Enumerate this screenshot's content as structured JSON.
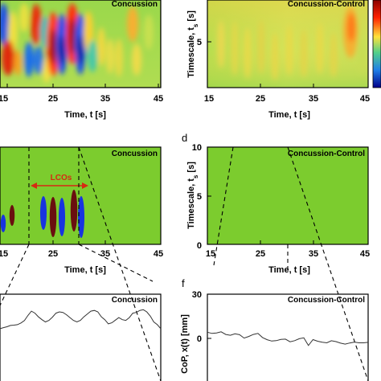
{
  "chart_data": [
    {
      "type": "heatmap",
      "title": "Concussion",
      "xlabel": "Time, t [s]",
      "xticks": [
        "15",
        "25",
        "35",
        "45"
      ],
      "xlim": [
        15,
        45
      ],
      "note": "wavelet spectrum, strong alternating red/blue bands between t=15 and 32 s"
    },
    {
      "type": "heatmap",
      "title": "Concussion-Control",
      "xlabel": "Time, t [s]",
      "ylabel": "Timescale, t_s [s]",
      "xticks": [
        "15",
        "25",
        "35",
        "45"
      ],
      "yticks": [
        "5"
      ],
      "xlim": [
        15,
        45
      ],
      "note": "mostly yellow-green, hot spot near t=42 s"
    },
    {
      "type": "heatmap",
      "panel": "",
      "title": "Concussion",
      "xlabel": "Time, t [s]",
      "xticks": [
        "15",
        "25",
        "35",
        "45"
      ],
      "annotation": "LCOs",
      "background": "#7ccc2e"
    },
    {
      "type": "heatmap",
      "panel": "d",
      "title": "Concussion-Control",
      "xlabel": "Time, t [s]",
      "ylabel": "Timescale, t_s [s]",
      "xticks": [
        "15",
        "25",
        "35",
        "45"
      ],
      "yticks": [
        "0",
        "5",
        "10"
      ],
      "ylim": [
        0,
        10
      ],
      "background": "#7ccc2e"
    },
    {
      "type": "line",
      "title": "Concussion",
      "series": [
        {
          "values": [
            6.6,
            7.3,
            7.9,
            8.8,
            9.0,
            9.3,
            10.5,
            12.1,
            15.6,
            18.5,
            17.1,
            14.6,
            12.7,
            11.2,
            12.2,
            14.4,
            17.1,
            18.0,
            17.6,
            16.1,
            14.1,
            12.2,
            11.2,
            12.2,
            14.6,
            16.6,
            18.5,
            19.0,
            18.0,
            14.6,
            12.7,
            9.9,
            10.6,
            12.4,
            14.1,
            12.7,
            12.2,
            14.1,
            17.1,
            17.6,
            19.0,
            19.5,
            18.0,
            15.1,
            11.2,
            9.3,
            6.6
          ]
        }
      ]
    },
    {
      "type": "line",
      "panel": "f",
      "title": "Concussion-Control",
      "ylabel": "CoP, x(t) [mm]",
      "yticks": [
        "0",
        "30"
      ],
      "series": [
        {
          "values": [
            4.2,
            3.4,
            3.7,
            4.5,
            2.7,
            2.1,
            3.1,
            2.5,
            0.2,
            1.3,
            2.7,
            3.4,
            0.6,
            -0.9,
            -1.8,
            -1.5,
            -0.7,
            -0.5,
            -2.3,
            -1.5,
            -0.2,
            0.4,
            -4.8,
            -0.8,
            -1.9,
            -2.6,
            -3.0,
            -1.6,
            -2.2,
            -3.2,
            -3.9,
            -3.1,
            -2.5,
            -3.0,
            -3.0,
            -2.7
          ]
        }
      ]
    }
  ]
}
